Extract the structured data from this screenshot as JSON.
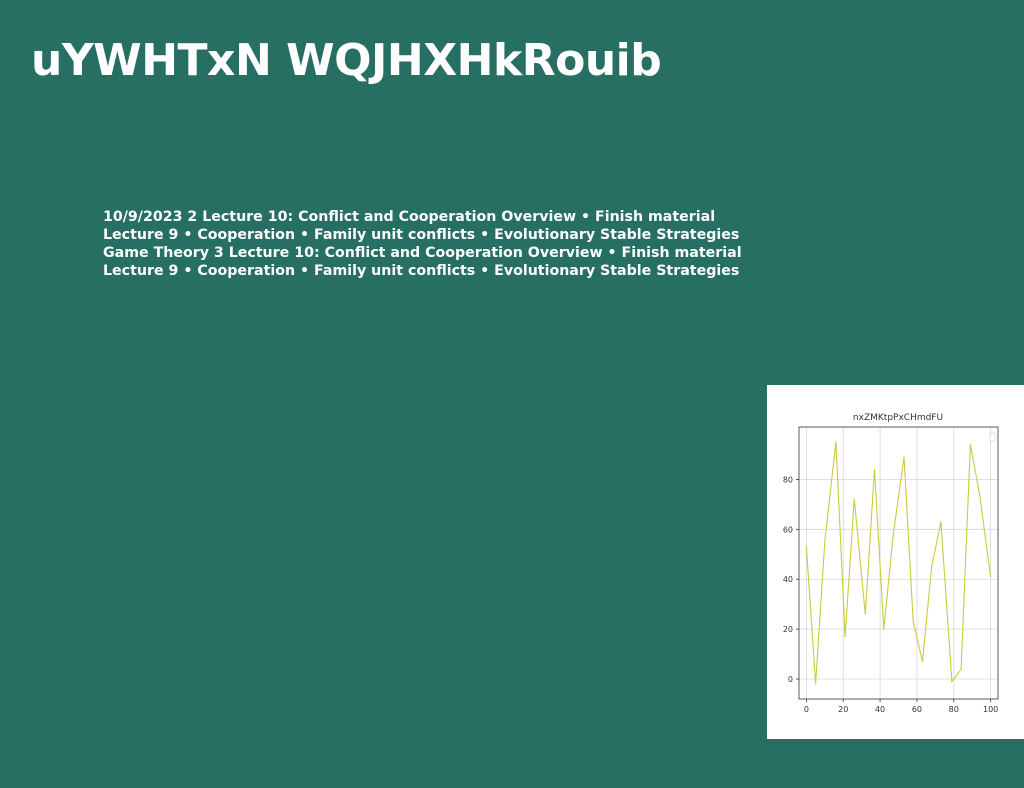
{
  "slide": {
    "title": "uYWHTxN WQJHXHkRouib",
    "body": "10/9/2023 2 Lecture 10: Conflict and Cooperation Overview • Finish material Lecture 9 • Cooperation • Family unit conflicts • Evolutionary Stable Strategies Game Theory 3 Lecture 10: Conflict and Cooperation Overview • Finish material Lecture 9 • Cooperation • Family unit conflicts • Evolutionary Stable Strategies"
  },
  "colors": {
    "background": "#276e63",
    "text": "#ffffff",
    "line": "#c8cc3c"
  },
  "chart_data": {
    "type": "line",
    "title": "nxZMKtpPxCHmdFU",
    "xlabel": "",
    "ylabel": "",
    "xlim": [
      -4,
      104
    ],
    "ylim": [
      -8,
      101
    ],
    "xticks": [
      0,
      20,
      40,
      60,
      80,
      100
    ],
    "yticks": [
      0,
      20,
      40,
      60,
      80
    ],
    "grid": true,
    "legend": "top-right",
    "x": [
      0,
      5,
      10,
      16,
      21,
      26,
      32,
      37,
      42,
      47,
      53,
      58,
      63,
      68,
      73,
      79,
      84,
      89,
      94,
      100
    ],
    "y": [
      53,
      -2,
      55,
      95,
      17,
      72,
      26,
      84,
      20,
      57,
      89,
      23,
      7,
      45,
      63,
      -1,
      4,
      94,
      74,
      41
    ]
  }
}
